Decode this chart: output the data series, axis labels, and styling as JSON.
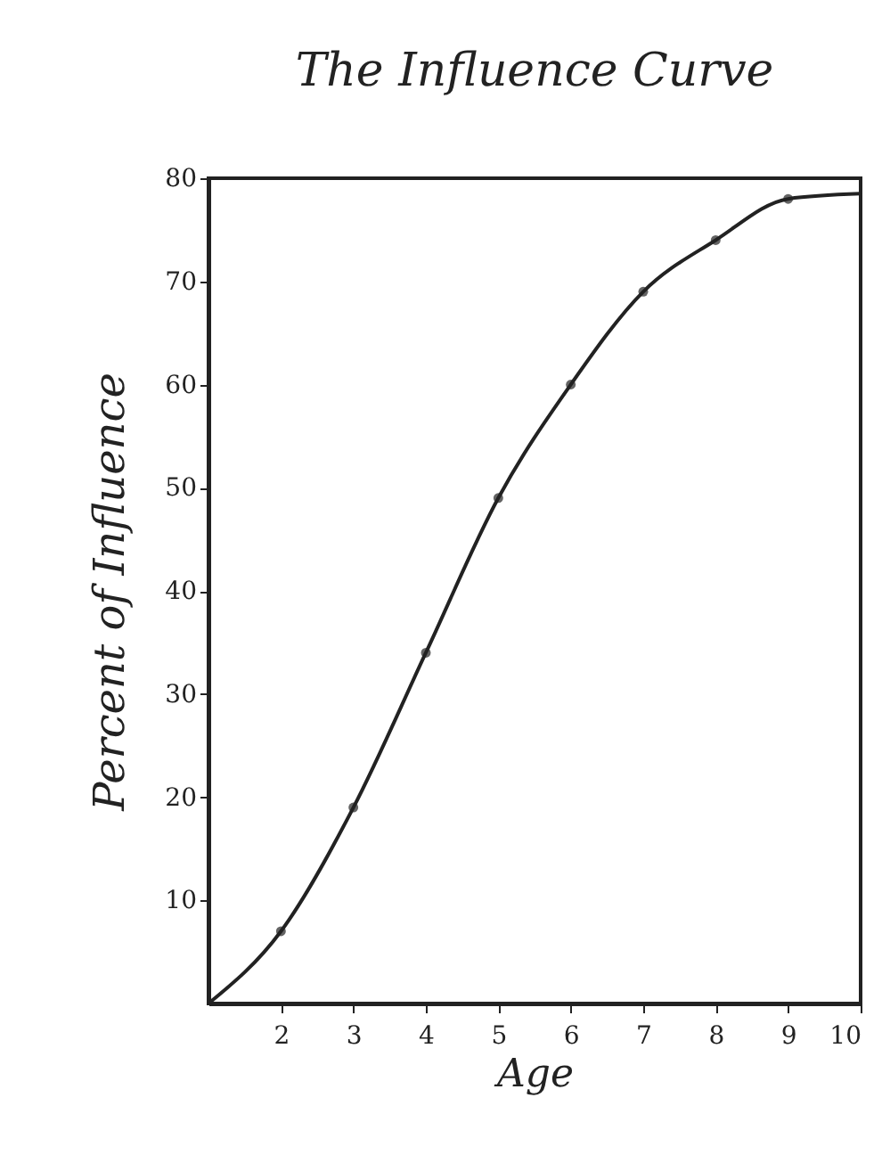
{
  "chart_data": {
    "type": "line",
    "title": "The Influence Curve",
    "xlabel": "Age",
    "ylabel": "Percent of Influence",
    "xlim": [
      1,
      10
    ],
    "xticks": [
      2,
      3,
      4,
      5,
      6,
      7,
      8,
      9,
      10
    ],
    "ylim": [
      0,
      80
    ],
    "yticks": [
      10,
      20,
      30,
      40,
      50,
      60,
      70,
      80
    ],
    "grid": false,
    "series": [
      {
        "color": "#222222",
        "x": [
          1,
          2,
          3,
          4,
          5,
          6,
          7,
          8,
          9,
          10
        ],
        "values": [
          0,
          7,
          19,
          34,
          49,
          60,
          69,
          74,
          78,
          78.5
        ],
        "marker": "none"
      },
      {
        "type": "scatter",
        "color": "#222222",
        "x": [
          2,
          3,
          4,
          5,
          6,
          7,
          8,
          9
        ],
        "values": [
          7,
          19,
          34,
          49,
          60,
          69,
          74,
          78
        ],
        "marker": "circle"
      }
    ]
  }
}
